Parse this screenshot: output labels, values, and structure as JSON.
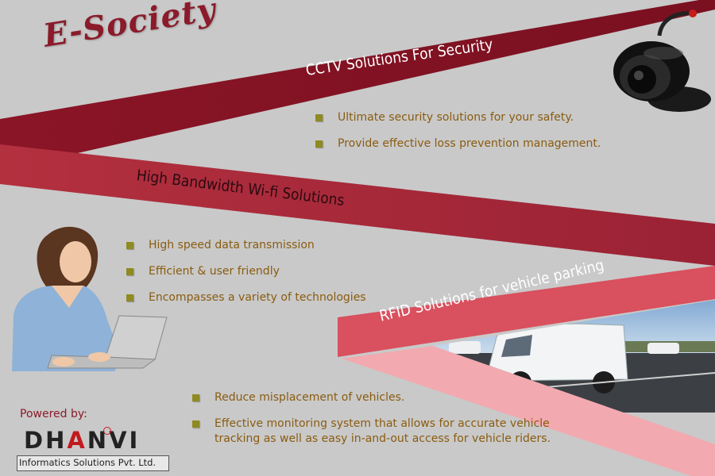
{
  "title": "E-Society",
  "sections": {
    "cctv": {
      "heading": "CCTV Solutions For Security",
      "items": [
        "Ultimate security solutions for your safety.",
        "Provide effective loss prevention management."
      ]
    },
    "wifi": {
      "heading": "High Bandwidth  Wi-fi Solutions",
      "items": [
        "High speed data transmission",
        "Efficient & user friendly",
        "Encompasses a variety of technologies"
      ]
    },
    "rfid": {
      "heading": "RFID Solutions for vehicle parking",
      "items": [
        "Reduce misplacement of vehicles.",
        "Effective monitoring system that allows for accurate vehicle tracking as well as easy in-and-out access for vehicle riders."
      ]
    }
  },
  "footer": {
    "powered_by": "Powered by:",
    "logo_name_start": "DH",
    "logo_name_accent": "A",
    "logo_name_end": "NVI",
    "logo_subtitle": "Informatics Solutions Pvt. Ltd."
  },
  "colors": {
    "band_dark": "#8b1a2a",
    "band_mid": "#a02a3a",
    "band_light": "#d9505e",
    "band_pale": "#f2a8ae",
    "bullet": "#8f8a22",
    "text": "#8a5c10"
  },
  "icons": [
    "cctv-camera-image",
    "woman-laptop-image",
    "parking-lot-van-image"
  ]
}
